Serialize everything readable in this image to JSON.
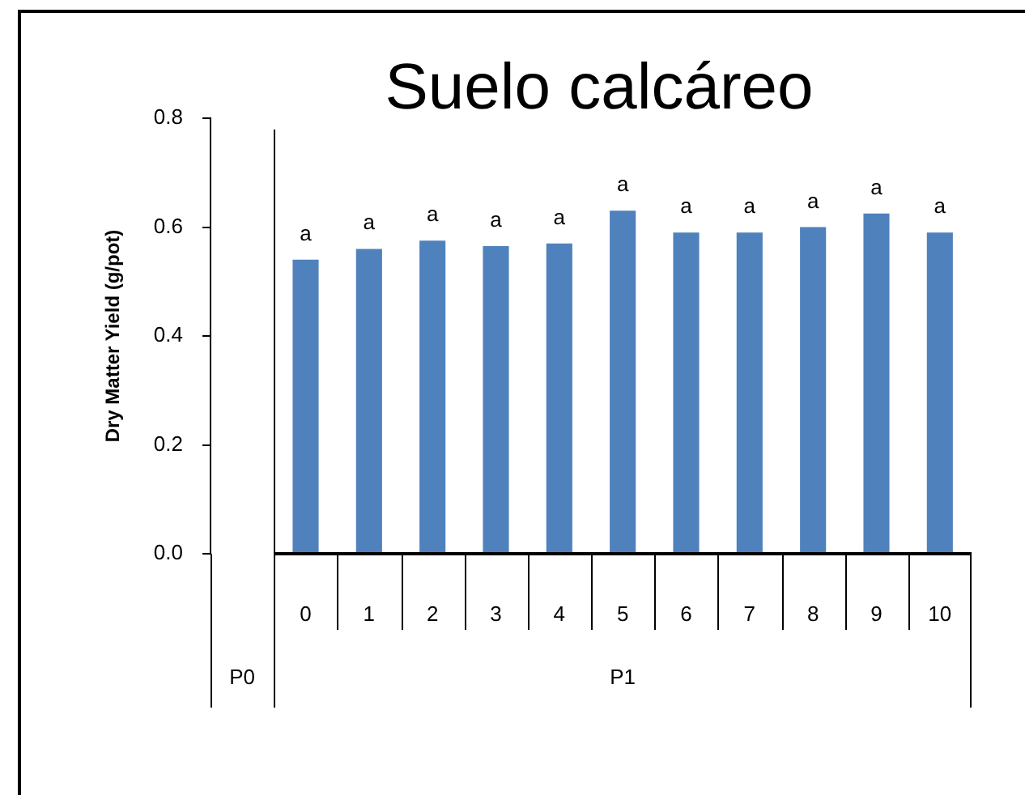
{
  "chart_data": {
    "type": "bar",
    "title": "Suelo calcáreo",
    "ylabel": "Dry Matter Yield (g/pot)",
    "categories": [
      null,
      "0",
      "1",
      "2",
      "3",
      "4",
      "5",
      "6",
      "7",
      "8",
      "9",
      "10"
    ],
    "values": [
      null,
      0.54,
      0.56,
      0.575,
      0.565,
      0.57,
      0.63,
      0.59,
      0.59,
      0.6,
      0.625,
      0.59
    ],
    "color": "#4f81bd",
    "ylim": [
      0,
      0.8
    ],
    "yticks": [
      {
        "value": 0,
        "label": "0.0"
      },
      0.2,
      0.4,
      0.6,
      0.8
    ],
    "grid": false,
    "annotations": [
      {
        "text": "a",
        "x": "0",
        "y": 0.54
      },
      {
        "text": "a",
        "x": "1",
        "y": 0.56
      },
      {
        "text": "a",
        "x": "2",
        "y": 0.575
      },
      {
        "text": "a",
        "x": "3",
        "y": 0.565
      },
      {
        "text": "a",
        "x": "4",
        "y": 0.57
      },
      {
        "text": "a",
        "x": "5",
        "y": 0.63
      },
      {
        "text": "a",
        "x": "6",
        "y": 0.59
      },
      {
        "text": "a",
        "x": "7",
        "y": 0.59
      },
      {
        "text": "a",
        "x": "8",
        "y": 0.6
      },
      {
        "text": "a",
        "x": "9",
        "y": 0.625
      },
      {
        "text": "a",
        "x": "10",
        "y": 0.59
      },
      "P0",
      "P1"
    ]
  }
}
